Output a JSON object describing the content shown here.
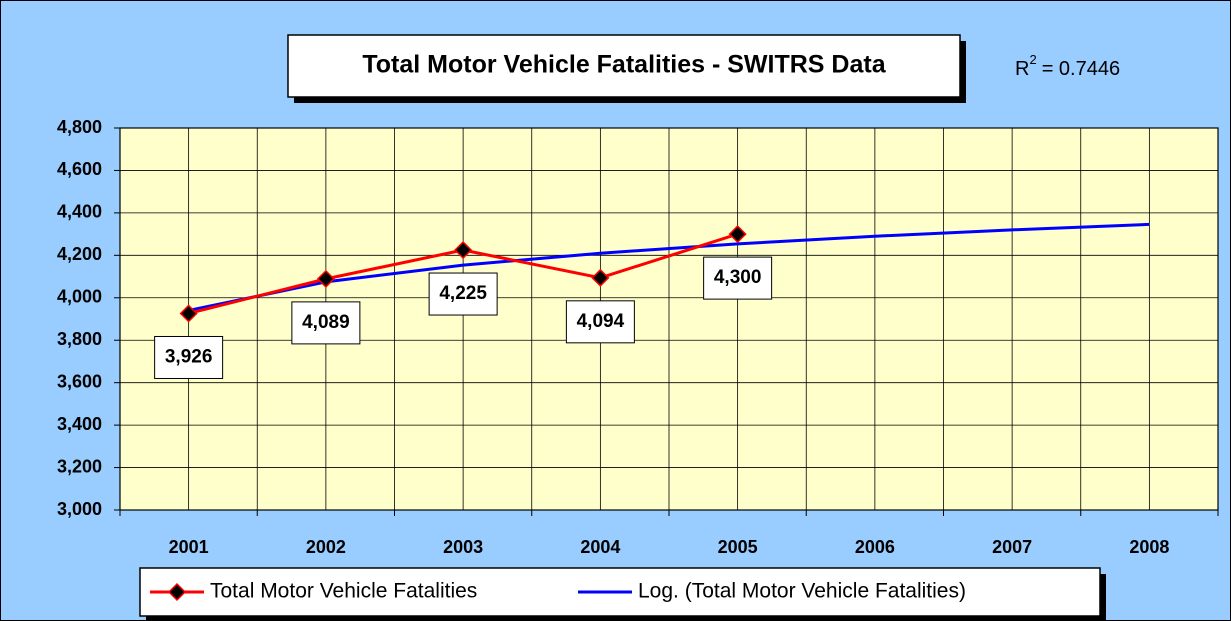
{
  "chart_data": {
    "type": "line",
    "title": "Total Motor Vehicle Fatalities - SWITRS Data",
    "annotation": {
      "base": "R",
      "sup": "2",
      "rest": "= 0.7446"
    },
    "categories": [
      "2001",
      "2002",
      "2003",
      "2004",
      "2005",
      "2006",
      "2007",
      "2008"
    ],
    "series": [
      {
        "name": "Total Motor Vehicle Fatalities",
        "color": "#ff0000",
        "values": [
          3926,
          4089,
          4225,
          4094,
          4300,
          null,
          null,
          null
        ],
        "value_labels": [
          "3,926",
          "4,089",
          "4,225",
          "4,094",
          "4,300",
          null,
          null,
          null
        ]
      },
      {
        "name": "Log. (Total Motor Vehicle Fatalities)",
        "color": "#0000ff",
        "values": [
          3940,
          4075,
          4154,
          4210,
          4254,
          4290,
          4320,
          4346
        ]
      }
    ],
    "ylim": [
      3000,
      4800
    ],
    "yticks": [
      {
        "value": 3000,
        "label": "3,000"
      },
      {
        "value": 3200,
        "label": "3,200"
      },
      {
        "value": 3400,
        "label": "3,400"
      },
      {
        "value": 3600,
        "label": "3,600"
      },
      {
        "value": 3800,
        "label": "3,800"
      },
      {
        "value": 4000,
        "label": "4,000"
      },
      {
        "value": 4200,
        "label": "4,200"
      },
      {
        "value": 4400,
        "label": "4,400"
      },
      {
        "value": 4600,
        "label": "4,600"
      },
      {
        "value": 4800,
        "label": "4,800"
      }
    ],
    "grid": true,
    "legend": "bottom"
  }
}
